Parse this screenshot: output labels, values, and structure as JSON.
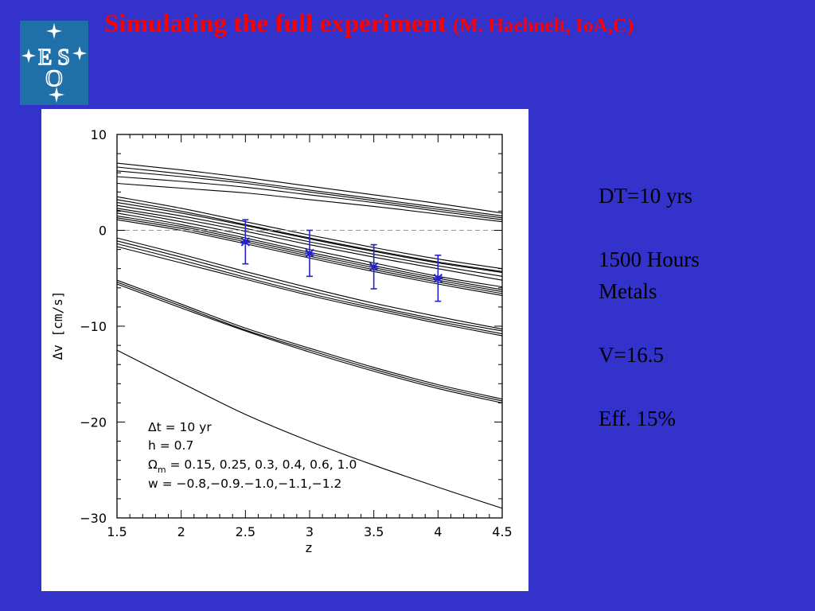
{
  "header": {
    "title_main": "Simulating the  full experiment",
    "title_sub": "(M. Haehnelt, IoA,C)"
  },
  "logo": {
    "text": "ESO",
    "icon": "eso-logo-icon",
    "bg_color": "#1f6fa8"
  },
  "colors": {
    "background": "#3333cc",
    "title": "#ff0000",
    "errorbar": "#2222cc"
  },
  "notes": {
    "dt": "DT=10 yrs",
    "hours": "1500 Hours",
    "metals": "Metals",
    "mag": "V=16.5",
    "eff": "Eff. 15%"
  },
  "chart_data": {
    "type": "line",
    "xlabel": "z",
    "ylabel": "Δv [cm/s]",
    "xlim": [
      1.5,
      4.5
    ],
    "ylim": [
      -30,
      10
    ],
    "x_ticks": [
      "1.5",
      "2",
      "2.5",
      "3",
      "3.5",
      "4",
      "4.5"
    ],
    "y_ticks": [
      "−30",
      "−20",
      "−10",
      "0",
      "10"
    ],
    "zero_reference_line": {
      "y": 0,
      "style": "dashed"
    },
    "annotation": {
      "line1": "Δt = 10 yr",
      "line2": "h = 0.7",
      "line3_symbol": "Ω",
      "line3_sub": "m",
      "line3_values": " = 0.15, 0.25, 0.3, 0.4, 0.6, 1.0",
      "line4": "w = −0.8,−0.9.−1.0,−1.1,−1.2"
    },
    "x": [
      1.5,
      2.0,
      2.5,
      3.0,
      3.5,
      4.0,
      4.5
    ],
    "series": [
      {
        "group": 1,
        "values": [
          7.0,
          6.3,
          5.5,
          4.6,
          3.7,
          2.8,
          1.8
        ]
      },
      {
        "group": 1,
        "values": [
          6.6,
          5.9,
          5.1,
          4.2,
          3.3,
          2.4,
          1.5
        ]
      },
      {
        "group": 1,
        "values": [
          6.2,
          5.6,
          4.9,
          4.0,
          3.1,
          2.2,
          1.3
        ]
      },
      {
        "group": 1,
        "values": [
          5.6,
          5.1,
          4.5,
          3.7,
          2.9,
          2.0,
          1.1
        ]
      },
      {
        "group": 1,
        "values": [
          4.9,
          4.4,
          3.9,
          3.2,
          2.5,
          1.7,
          0.9
        ]
      },
      {
        "group": 2,
        "values": [
          3.5,
          2.3,
          0.9,
          -0.5,
          -1.8,
          -3.0,
          -4.0
        ]
      },
      {
        "group": 2,
        "values": [
          3.2,
          2.0,
          0.6,
          -0.8,
          -2.1,
          -3.3,
          -4.3
        ]
      },
      {
        "group": 2,
        "values": [
          2.9,
          1.8,
          0.5,
          -0.9,
          -2.2,
          -3.4,
          -4.4
        ]
      },
      {
        "group": 2,
        "values": [
          2.6,
          1.5,
          0.2,
          -1.2,
          -2.5,
          -3.7,
          -4.8
        ]
      },
      {
        "group": 2,
        "values": [
          2.3,
          1.2,
          -0.1,
          -1.5,
          -2.8,
          -4.0,
          -5.2
        ]
      },
      {
        "group": 3,
        "values": [
          2.1,
          0.9,
          -0.5,
          -2.0,
          -3.4,
          -4.8,
          -5.9
        ]
      },
      {
        "group": 3,
        "values": [
          1.8,
          0.6,
          -0.8,
          -2.3,
          -3.7,
          -5.0,
          -6.2
        ]
      },
      {
        "group": 3,
        "values": [
          1.5,
          0.4,
          -1.0,
          -2.5,
          -3.9,
          -5.2,
          -6.4
        ]
      },
      {
        "group": 3,
        "values": [
          1.3,
          0.2,
          -1.2,
          -2.7,
          -4.1,
          -5.4,
          -6.6
        ]
      },
      {
        "group": 3,
        "values": [
          1.1,
          0.0,
          -1.4,
          -2.9,
          -4.3,
          -5.6,
          -6.8
        ]
      },
      {
        "group": 4,
        "values": [
          -0.8,
          -2.5,
          -4.3,
          -6.0,
          -7.6,
          -9.0,
          -10.3
        ]
      },
      {
        "group": 4,
        "values": [
          -1.1,
          -2.8,
          -4.6,
          -6.3,
          -7.9,
          -9.3,
          -10.5
        ]
      },
      {
        "group": 4,
        "values": [
          -1.4,
          -3.1,
          -4.9,
          -6.6,
          -8.1,
          -9.5,
          -10.8
        ]
      },
      {
        "group": 4,
        "values": [
          -1.7,
          -3.4,
          -5.1,
          -6.8,
          -8.3,
          -9.7,
          -11.0
        ]
      },
      {
        "group": 5,
        "values": [
          -5.2,
          -7.7,
          -10.2,
          -12.3,
          -14.3,
          -16.1,
          -17.6
        ]
      },
      {
        "group": 5,
        "values": [
          -5.4,
          -7.9,
          -10.4,
          -12.5,
          -14.5,
          -16.3,
          -17.8
        ]
      },
      {
        "group": 5,
        "values": [
          -5.6,
          -8.1,
          -10.5,
          -12.7,
          -14.7,
          -16.5,
          -18.0
        ]
      },
      {
        "group": 6,
        "values": [
          -12.5,
          -15.9,
          -19.2,
          -22.0,
          -24.5,
          -26.8,
          -29.0
        ]
      }
    ],
    "measurements": [
      {
        "z": 2.5,
        "dv": -1.2,
        "err": 2.3
      },
      {
        "z": 3.0,
        "dv": -2.4,
        "err": 2.4
      },
      {
        "z": 3.5,
        "dv": -3.8,
        "err": 2.3
      },
      {
        "z": 4.0,
        "dv": -5.0,
        "err": 2.4
      }
    ]
  }
}
